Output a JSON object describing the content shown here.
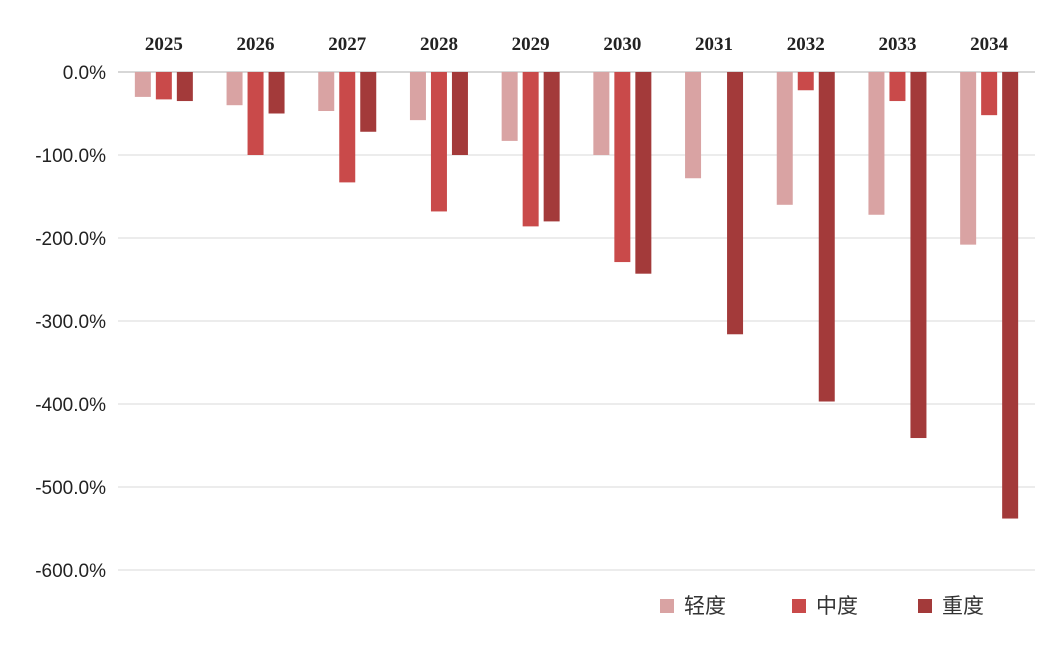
{
  "chart_data": {
    "type": "bar",
    "categories": [
      "2025",
      "2026",
      "2027",
      "2028",
      "2029",
      "2030",
      "2031",
      "2032",
      "2033",
      "2034"
    ],
    "series": [
      {
        "name": "轻度",
        "color": "#d9a3a3",
        "values": [
          -30,
          -40,
          -47,
          -58,
          -83,
          -100,
          -128,
          -160,
          -172,
          -208
        ]
      },
      {
        "name": "中度",
        "color": "#c94a4a",
        "values": [
          -33,
          -100,
          -133,
          -168,
          -186,
          -229,
          0,
          -22,
          -35,
          -52
        ]
      },
      {
        "name": "重度",
        "color": "#a33a3a",
        "values": [
          -35,
          -50,
          -72,
          -100,
          -180,
          -243,
          -316,
          -397,
          -441,
          -538
        ]
      }
    ],
    "yticks": [
      {
        "value": 0,
        "label": "0.0%"
      },
      {
        "value": -100,
        "label": "-100.0%"
      },
      {
        "value": -200,
        "label": "-200.0%"
      },
      {
        "value": -300,
        "label": "-300.0%"
      },
      {
        "value": -400,
        "label": "-400.0%"
      },
      {
        "value": -500,
        "label": "-500.0%"
      },
      {
        "value": -600,
        "label": "-600.0%"
      }
    ],
    "ylim": [
      -600,
      0
    ],
    "grid": true,
    "category_label_position": "top",
    "legend_position": "bottom-right",
    "title": "",
    "xlabel": "",
    "ylabel": ""
  }
}
